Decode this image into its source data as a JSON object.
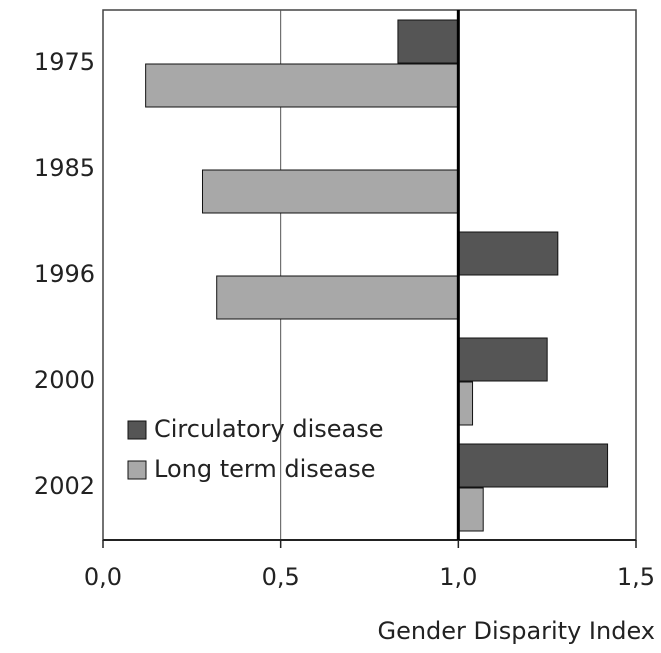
{
  "chart_data": {
    "type": "bar",
    "orientation": "horizontal",
    "base": 1,
    "categories": [
      "1975",
      "1985",
      "1996",
      "2000",
      "2002"
    ],
    "series": [
      {
        "name": "Circulatory disease",
        "color": "#555555",
        "values": [
          0.83,
          1.0,
          1.28,
          1.25,
          1.42
        ]
      },
      {
        "name": "Long term disease",
        "color": "#a8a8a8",
        "values": [
          0.12,
          0.28,
          0.32,
          1.04,
          1.07
        ]
      }
    ],
    "xlabel": "Gender Disparity Index",
    "xlim": [
      0,
      1.5
    ],
    "xticks": [
      {
        "value": 0,
        "label": "0,0"
      },
      {
        "value": 0.5,
        "label": "0,5"
      },
      {
        "value": 1,
        "label": "1,0"
      },
      {
        "value": 1.5,
        "label": "1,5"
      }
    ],
    "grid": true,
    "legend": "lower left"
  }
}
